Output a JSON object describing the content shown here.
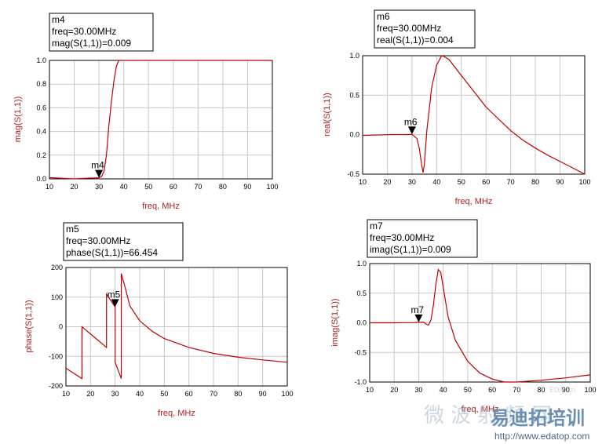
{
  "chart_data": [
    {
      "type": "line",
      "xlabel": "freq, MHz",
      "ylabel": "mag(S(1,1))",
      "xlim": [
        10,
        100
      ],
      "ylim": [
        0.0,
        1.0
      ],
      "xticks": [
        "10",
        "20",
        "30",
        "40",
        "50",
        "60",
        "70",
        "80",
        "90",
        "100"
      ],
      "yticks": [
        "0.0",
        "0.2",
        "0.4",
        "0.6",
        "0.8",
        "1.0"
      ],
      "grid": true,
      "series": [
        {
          "x": [
            10,
            15,
            20,
            25,
            28,
            30,
            31,
            32,
            33,
            34,
            35,
            36,
            37,
            38,
            40,
            50,
            60,
            70,
            80,
            90,
            100
          ],
          "y": [
            0.01,
            0.005,
            0.0,
            0.005,
            0.008,
            0.009,
            0.02,
            0.06,
            0.2,
            0.45,
            0.65,
            0.82,
            0.95,
            1.0,
            1.0,
            1.0,
            1.0,
            1.0,
            1.0,
            1.0,
            1.0
          ]
        }
      ],
      "marker": {
        "name": "m4",
        "x": 30,
        "y": 0.009,
        "lines": [
          "m4",
          "freq=30.00MHz",
          "mag(S(1,1))=0.009"
        ]
      }
    },
    {
      "type": "line",
      "xlabel": "freq, MHz",
      "ylabel": "real(S(1,1))",
      "xlim": [
        10,
        100
      ],
      "ylim": [
        -0.5,
        1.0
      ],
      "xticks": [
        "10",
        "20",
        "30",
        "40",
        "50",
        "60",
        "70",
        "80",
        "90",
        "100"
      ],
      "yticks": [
        "-0.5",
        "0.0",
        "0.5",
        "1.0"
      ],
      "grid": true,
      "series": [
        {
          "x": [
            10,
            20,
            28,
            30,
            32,
            33,
            34,
            34.5,
            35,
            36,
            38,
            40,
            42,
            43,
            45,
            50,
            55,
            60,
            65,
            70,
            75,
            80,
            85,
            90,
            95,
            100
          ],
          "y": [
            -0.01,
            0.0,
            0.002,
            0.004,
            -0.05,
            -0.18,
            -0.4,
            -0.48,
            -0.38,
            0.05,
            0.6,
            0.88,
            1.0,
            0.99,
            0.95,
            0.75,
            0.55,
            0.35,
            0.2,
            0.05,
            -0.07,
            -0.17,
            -0.26,
            -0.34,
            -0.42,
            -0.5
          ]
        }
      ],
      "marker": {
        "name": "m6",
        "x": 30,
        "y": 0.004,
        "lines": [
          "m6",
          "freq=30.00MHz",
          "real(S(1,1))=0.004"
        ]
      }
    },
    {
      "type": "line",
      "xlabel": "freq, MHz",
      "ylabel": "phase(S(1,1))",
      "xlim": [
        10,
        100
      ],
      "ylim": [
        -200,
        200
      ],
      "xticks": [
        "10",
        "20",
        "30",
        "40",
        "50",
        "60",
        "70",
        "80",
        "90",
        "100"
      ],
      "yticks": [
        "-200",
        "-100",
        "0",
        "100",
        "200"
      ],
      "grid": true,
      "series": [
        {
          "x": [
            10,
            16.5,
            16.5,
            26.5,
            26.5,
            30,
            30,
            32.5,
            32.5,
            34,
            36,
            40,
            45,
            50,
            60,
            70,
            80,
            90,
            100
          ],
          "y": [
            -140,
            -175,
            0,
            -70,
            110,
            66.454,
            -120,
            -175,
            180,
            135,
            70,
            20,
            -15,
            -40,
            -70,
            -90,
            -103,
            -112,
            -120
          ]
        }
      ],
      "marker": {
        "name": "m5",
        "x": 30,
        "y": 66.454,
        "lines": [
          "m5",
          "freq=30.00MHz",
          "phase(S(1,1))=66.454"
        ]
      }
    },
    {
      "type": "line",
      "xlabel": "freq, MHz",
      "ylabel": "imag(S(1,1))",
      "xlim": [
        10,
        100
      ],
      "ylim": [
        -1.0,
        1.0
      ],
      "xticks": [
        "10",
        "20",
        "30",
        "40",
        "50",
        "60",
        "70",
        "80",
        "90",
        "100"
      ],
      "yticks": [
        "-1.0",
        "-0.5",
        "0.0",
        "0.5",
        "1.0"
      ],
      "grid": true,
      "series": [
        {
          "x": [
            10,
            20,
            28,
            30,
            32,
            33,
            34,
            35,
            36,
            37,
            38,
            39,
            40,
            42,
            45,
            50,
            55,
            60,
            65,
            70,
            80,
            90,
            100
          ],
          "y": [
            0.0,
            0.0,
            0.004,
            0.009,
            0.01,
            -0.02,
            -0.04,
            0.05,
            0.3,
            0.65,
            0.9,
            0.85,
            0.6,
            0.1,
            -0.3,
            -0.65,
            -0.85,
            -0.95,
            -1.0,
            -1.0,
            -0.97,
            -0.93,
            -0.88
          ]
        }
      ],
      "marker": {
        "name": "m7",
        "x": 30,
        "y": 0.009,
        "lines": [
          "m7",
          "freq=30.00MHz",
          "imag(S(1,1))=0.009"
        ]
      }
    }
  ],
  "watermark": {
    "text1": "微  波  射  频  网",
    "logo": "易迪拓培训",
    "url": "http://www.edatop.com",
    "small": "EDA.Cn"
  }
}
